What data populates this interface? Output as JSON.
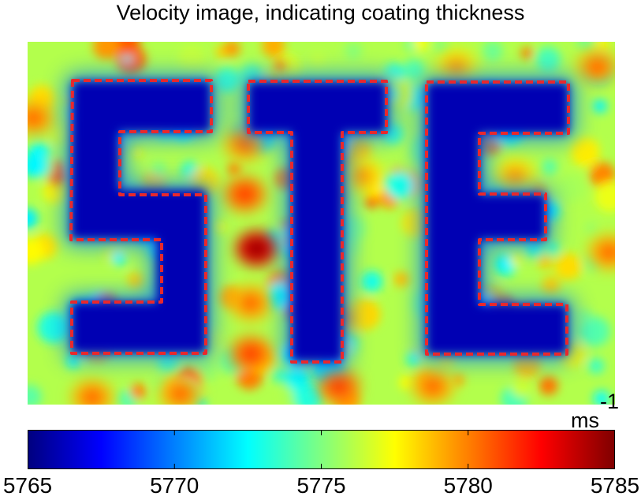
{
  "chart_data": {
    "type": "heatmap",
    "title": "Velocity image, indicating coating thickness",
    "units": {
      "base": "ms",
      "exponent": "-1"
    },
    "colormap": "jet",
    "color_range": [
      5765,
      5785
    ],
    "colorbar": {
      "orientation": "horizontal",
      "placement": "below",
      "ticks": [
        {
          "value": 5765,
          "label": "5765"
        },
        {
          "value": 5770,
          "label": "5770"
        },
        {
          "value": 5775,
          "label": "5775"
        },
        {
          "value": 5780,
          "label": "5780"
        },
        {
          "value": 5785,
          "label": "5785"
        }
      ]
    },
    "background_level": 5776,
    "letter_level": 5766,
    "annotation": {
      "shape": "letter outlines",
      "style": "dashed",
      "color": "#e8282d"
    },
    "letters": [
      "S",
      "T",
      "E"
    ],
    "hot_spots": [
      {
        "x": 0.39,
        "y": 0.57,
        "value": 5785
      },
      {
        "x": 0.37,
        "y": 0.28,
        "value": 5781
      },
      {
        "x": 0.37,
        "y": 0.42,
        "value": 5782
      },
      {
        "x": 0.38,
        "y": 0.72,
        "value": 5781
      },
      {
        "x": 0.38,
        "y": 0.86,
        "value": 5782
      },
      {
        "x": 0.53,
        "y": 0.95,
        "value": 5782
      },
      {
        "x": 0.26,
        "y": 0.97,
        "value": 5781
      },
      {
        "x": 0.97,
        "y": 0.07,
        "value": 5781
      },
      {
        "x": 0.01,
        "y": 0.21,
        "value": 5781
      },
      {
        "x": 0.83,
        "y": 0.37,
        "value": 5780
      },
      {
        "x": 0.57,
        "y": 0.37,
        "value": 5780
      },
      {
        "x": 0.69,
        "y": 0.95,
        "value": 5781
      },
      {
        "x": 0.99,
        "y": 0.58,
        "value": 5781
      },
      {
        "x": 0.73,
        "y": 0.07,
        "value": 5780
      },
      {
        "x": 0.11,
        "y": 0.98,
        "value": 5781
      },
      {
        "x": 0.54,
        "y": 0.76,
        "value": 5780
      }
    ]
  }
}
